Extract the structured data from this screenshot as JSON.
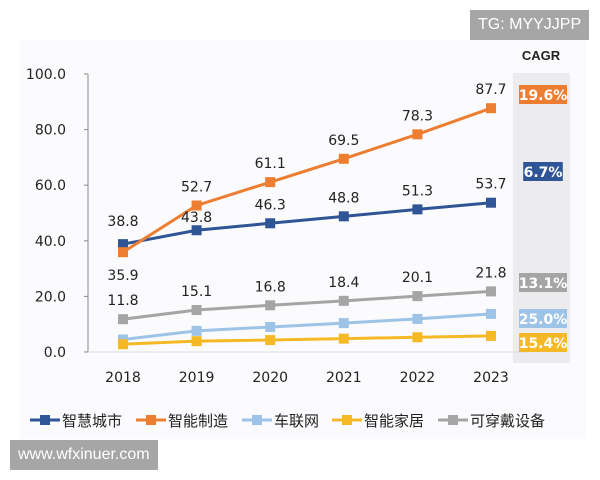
{
  "watermarks": {
    "top": "TG: MYYJJPP",
    "bottom": "www.wfxinuer.com"
  },
  "chart_data": {
    "type": "line",
    "title": "",
    "xlabel": "",
    "ylabel": "",
    "categories": [
      "2018",
      "2019",
      "2020",
      "2021",
      "2022",
      "2023"
    ],
    "ylim": [
      0,
      100
    ],
    "yticks": [
      "0.0",
      "20.0",
      "40.0",
      "60.0",
      "80.0",
      "100.0"
    ],
    "grid": false,
    "legend_position": "bottom",
    "cagr_header": "CAGR",
    "series": [
      {
        "name": "智慧城市",
        "color": "#2f5597",
        "values": [
          38.8,
          43.8,
          46.3,
          48.8,
          51.3,
          53.7
        ],
        "labeled": true,
        "cagr": "6.7%"
      },
      {
        "name": "智能制造",
        "color": "#ed7d31",
        "values": [
          35.9,
          52.7,
          61.1,
          69.5,
          78.3,
          87.7
        ],
        "labeled": true,
        "cagr": "19.6%"
      },
      {
        "name": "车联网",
        "color": "#9dc3e6",
        "values": [
          4.5,
          7.6,
          9.0,
          10.4,
          11.9,
          13.7
        ],
        "labeled": false,
        "cagr": "25.0%"
      },
      {
        "name": "智能家居",
        "color": "#f4b925",
        "values": [
          2.8,
          3.9,
          4.3,
          4.8,
          5.3,
          5.8
        ],
        "labeled": false,
        "cagr": "15.4%"
      },
      {
        "name": "可穿戴设备",
        "color": "#a5a5a5",
        "values": [
          11.8,
          15.1,
          16.8,
          18.4,
          20.1,
          21.8
        ],
        "labeled": true,
        "cagr": "13.1%"
      }
    ]
  }
}
